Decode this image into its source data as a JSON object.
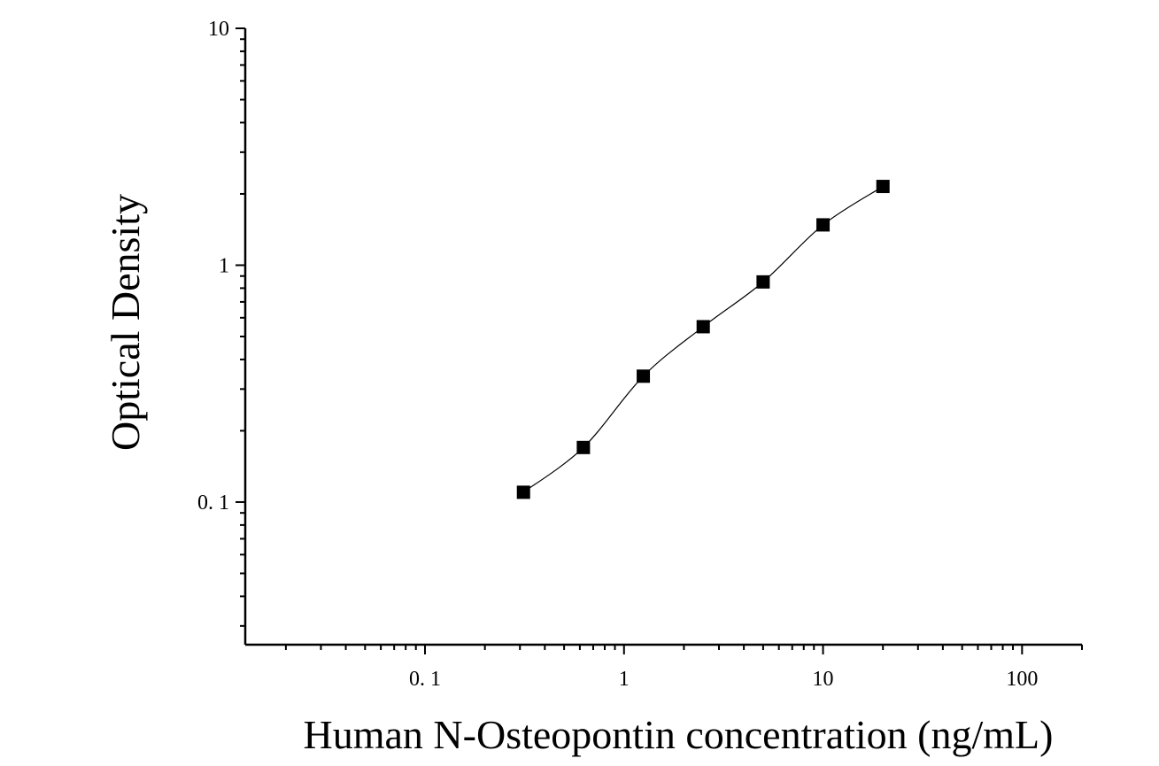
{
  "chart_data": {
    "type": "scatter",
    "title": "",
    "xlabel": "Human N-Osteopontin concentration (ng/mL)",
    "ylabel": "Optical Density",
    "x_scale": "log",
    "y_scale": "log",
    "xlim": [
      0.0125,
      200
    ],
    "ylim": [
      0.025,
      10
    ],
    "x_ticks": [
      {
        "value": 0.1,
        "label": "0. 1"
      },
      {
        "value": 1,
        "label": "1"
      },
      {
        "value": 10,
        "label": "10"
      },
      {
        "value": 100,
        "label": "100"
      }
    ],
    "y_ticks": [
      {
        "value": 0.1,
        "label": "0. 1"
      },
      {
        "value": 1,
        "label": "1"
      },
      {
        "value": 10,
        "label": "10"
      }
    ],
    "grid": false,
    "legend": "none",
    "marker": "square",
    "color": "#000000",
    "series": [
      {
        "x": [
          0.3125,
          0.625,
          1.25,
          2.5,
          5,
          10,
          20
        ],
        "y": [
          0.11,
          0.17,
          0.34,
          0.55,
          0.85,
          1.48,
          2.15
        ]
      }
    ],
    "fit_curve": true
  }
}
